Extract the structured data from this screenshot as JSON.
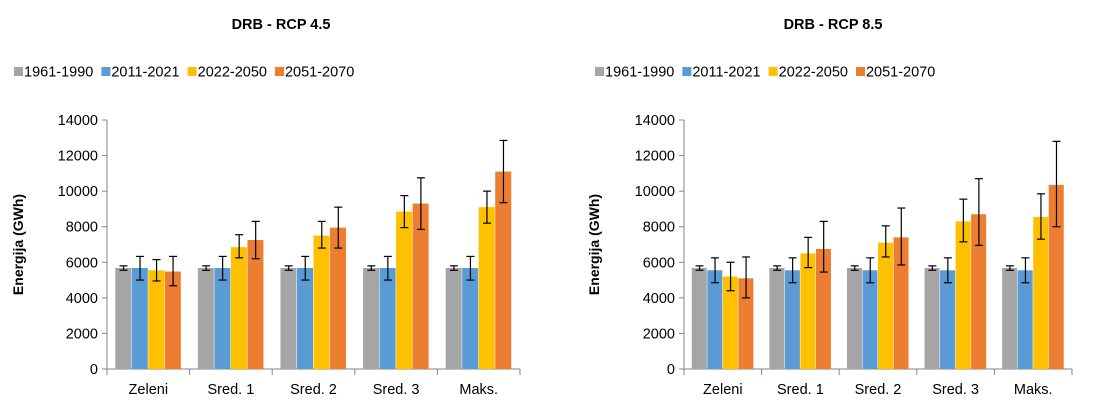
{
  "chart_data": [
    {
      "type": "bar",
      "title": "DRB - RCP 4.5",
      "xlabel": "",
      "ylabel": "Energija (GWh)",
      "ylim": [
        0,
        14000
      ],
      "yticks": [
        0,
        2000,
        4000,
        6000,
        8000,
        10000,
        12000,
        14000
      ],
      "grid": false,
      "legend_position": "top",
      "categories": [
        "Zeleni",
        "Sred. 1",
        "Sred. 2",
        "Sred. 3",
        "Maks."
      ],
      "series": [
        {
          "name": "1961-1990",
          "color": "#A5A5A5",
          "values": [
            5680,
            5680,
            5680,
            5680,
            5680
          ],
          "err_low": [
            5550,
            5550,
            5550,
            5550,
            5550
          ],
          "err_high": [
            5800,
            5800,
            5800,
            5800,
            5800
          ]
        },
        {
          "name": "2011-2021",
          "color": "#5B9BD5",
          "values": [
            5680,
            5680,
            5680,
            5680,
            5680
          ],
          "err_low": [
            5000,
            5000,
            5000,
            5000,
            5000
          ],
          "err_high": [
            6330,
            6330,
            6330,
            6330,
            6330
          ]
        },
        {
          "name": "2022-2050",
          "color": "#FFC000",
          "values": [
            5550,
            6850,
            7500,
            8850,
            9100
          ],
          "err_low": [
            4950,
            6250,
            6800,
            7950,
            8200
          ],
          "err_high": [
            6150,
            7550,
            8300,
            9750,
            10000
          ]
        },
        {
          "name": "2051-2070",
          "color": "#ED7D31",
          "values": [
            5480,
            7250,
            7950,
            9300,
            11100
          ],
          "err_low": [
            4680,
            6200,
            6800,
            7850,
            9350
          ],
          "err_high": [
            6330,
            8300,
            9100,
            10750,
            12850
          ]
        }
      ]
    },
    {
      "type": "bar",
      "title": "DRB - RCP 8.5",
      "xlabel": "",
      "ylabel": "Energija (GWh)",
      "ylim": [
        0,
        14000
      ],
      "yticks": [
        0,
        2000,
        4000,
        6000,
        8000,
        10000,
        12000,
        14000
      ],
      "grid": false,
      "legend_position": "top",
      "categories": [
        "Zeleni",
        "Sred. 1",
        "Sred. 2",
        "Sred. 3",
        "Maks."
      ],
      "series": [
        {
          "name": "1961-1990",
          "color": "#A5A5A5",
          "values": [
            5680,
            5680,
            5680,
            5680,
            5680
          ],
          "err_low": [
            5550,
            5550,
            5550,
            5550,
            5550
          ],
          "err_high": [
            5800,
            5800,
            5800,
            5800,
            5800
          ]
        },
        {
          "name": "2011-2021",
          "color": "#5B9BD5",
          "values": [
            5550,
            5550,
            5550,
            5550,
            5550
          ],
          "err_low": [
            4850,
            4850,
            4850,
            4850,
            4850
          ],
          "err_high": [
            6250,
            6250,
            6250,
            6250,
            6250
          ]
        },
        {
          "name": "2022-2050",
          "color": "#FFC000",
          "values": [
            5200,
            6500,
            7100,
            8300,
            8550
          ],
          "err_low": [
            4400,
            5700,
            6300,
            7150,
            7300
          ],
          "err_high": [
            6000,
            7400,
            8050,
            9550,
            9850
          ]
        },
        {
          "name": "2051-2070",
          "color": "#ED7D31",
          "values": [
            5100,
            6750,
            7400,
            8700,
            10350
          ],
          "err_low": [
            4000,
            5450,
            5850,
            6950,
            8000
          ],
          "err_high": [
            6300,
            8300,
            9050,
            10700,
            12800
          ]
        }
      ]
    }
  ]
}
